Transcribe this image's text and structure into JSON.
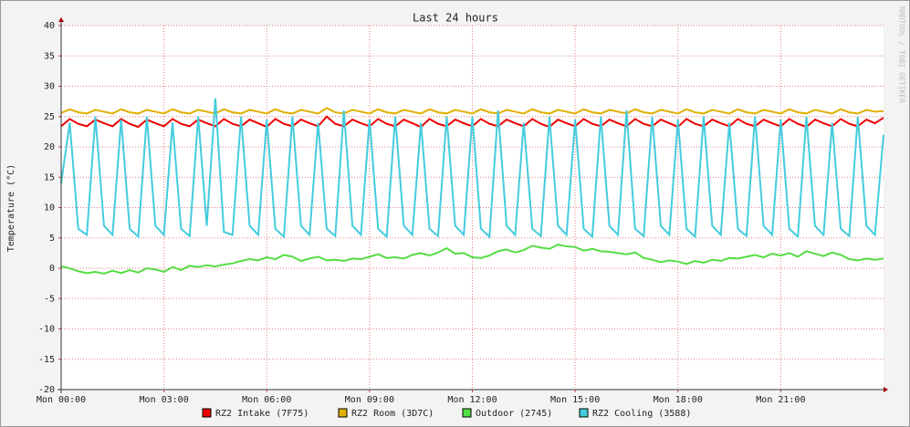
{
  "chart_data": {
    "type": "line",
    "title": "Last 24 hours",
    "ylabel": "Temperature (°C)",
    "watermark": "RRDTOOL / TOBI OETIKER",
    "grid": true,
    "legend": "bottom",
    "xlim": [
      0,
      24
    ],
    "xticks": [
      {
        "value": 0,
        "label": "Mon 00:00"
      },
      {
        "value": 3,
        "label": "Mon 03:00"
      },
      {
        "value": 6,
        "label": "Mon 06:00"
      },
      {
        "value": 9,
        "label": "Mon 09:00"
      },
      {
        "value": 12,
        "label": "Mon 12:00"
      },
      {
        "value": 15,
        "label": "Mon 15:00"
      },
      {
        "value": 18,
        "label": "Mon 18:00"
      },
      {
        "value": 21,
        "label": "Mon 21:00"
      }
    ],
    "ylim": [
      -20,
      40
    ],
    "yticks": [
      -20,
      -15,
      -10,
      -5,
      0,
      5,
      10,
      15,
      20,
      25,
      30,
      35,
      40
    ],
    "x": [
      0,
      0.25,
      0.5,
      0.75,
      1,
      1.25,
      1.5,
      1.75,
      2,
      2.25,
      2.5,
      2.75,
      3,
      3.25,
      3.5,
      3.75,
      4,
      4.25,
      4.5,
      4.75,
      5,
      5.25,
      5.5,
      5.75,
      6,
      6.25,
      6.5,
      6.75,
      7,
      7.25,
      7.5,
      7.75,
      8,
      8.25,
      8.5,
      8.75,
      9,
      9.25,
      9.5,
      9.75,
      10,
      10.25,
      10.5,
      10.75,
      11,
      11.25,
      11.5,
      11.75,
      12,
      12.25,
      12.5,
      12.75,
      13,
      13.25,
      13.5,
      13.75,
      14,
      14.25,
      14.5,
      14.75,
      15,
      15.25,
      15.5,
      15.75,
      16,
      16.25,
      16.5,
      16.75,
      17,
      17.25,
      17.5,
      17.75,
      18,
      18.25,
      18.5,
      18.75,
      19,
      19.25,
      19.5,
      19.75,
      20,
      20.25,
      20.5,
      20.75,
      21,
      21.25,
      21.5,
      21.75,
      22,
      22.25,
      22.5,
      22.75,
      23,
      23.25,
      23.5,
      23.75,
      24
    ],
    "series": [
      {
        "name": "RZ2 Intake (7F75)",
        "color": "#ee0000",
        "values": [
          23.4,
          24.6,
          23.8,
          23.4,
          24.5,
          23.9,
          23.4,
          24.6,
          23.8,
          23.3,
          24.5,
          23.9,
          23.4,
          24.6,
          23.8,
          23.4,
          24.5,
          23.9,
          23.4,
          24.6,
          23.8,
          23.4,
          24.5,
          23.9,
          23.3,
          24.6,
          23.8,
          23.4,
          24.5,
          23.9,
          23.4,
          25.0,
          23.8,
          23.4,
          24.5,
          23.9,
          23.4,
          24.6,
          23.8,
          23.4,
          24.5,
          23.9,
          23.3,
          24.6,
          23.8,
          23.4,
          24.5,
          23.9,
          23.4,
          24.6,
          23.8,
          23.4,
          24.5,
          23.9,
          23.4,
          24.6,
          23.8,
          23.3,
          24.5,
          23.9,
          23.4,
          24.6,
          23.8,
          23.4,
          24.5,
          23.9,
          23.4,
          24.6,
          23.8,
          23.4,
          24.5,
          23.9,
          23.3,
          24.6,
          23.8,
          23.4,
          24.5,
          23.9,
          23.4,
          24.6,
          23.8,
          23.4,
          24.5,
          23.9,
          23.4,
          24.6,
          23.8,
          23.3,
          24.5,
          23.9,
          23.4,
          24.6,
          23.8,
          23.4,
          24.5,
          23.9,
          24.8
        ]
      },
      {
        "name": "RZ2 Room (3D7C)",
        "color": "#e0b000",
        "values": [
          25.6,
          26.2,
          25.7,
          25.5,
          26.1,
          25.8,
          25.5,
          26.2,
          25.7,
          25.5,
          26.1,
          25.8,
          25.5,
          26.2,
          25.7,
          25.5,
          26.1,
          25.8,
          25.5,
          26.2,
          25.7,
          25.5,
          26.1,
          25.8,
          25.5,
          26.2,
          25.7,
          25.5,
          26.1,
          25.8,
          25.5,
          26.4,
          25.7,
          25.5,
          26.1,
          25.8,
          25.5,
          26.2,
          25.7,
          25.5,
          26.1,
          25.8,
          25.5,
          26.2,
          25.7,
          25.5,
          26.1,
          25.8,
          25.5,
          26.2,
          25.7,
          25.5,
          26.1,
          25.8,
          25.5,
          26.2,
          25.7,
          25.5,
          26.1,
          25.8,
          25.5,
          26.2,
          25.7,
          25.5,
          26.1,
          25.8,
          25.5,
          26.2,
          25.7,
          25.5,
          26.1,
          25.8,
          25.5,
          26.2,
          25.7,
          25.5,
          26.1,
          25.8,
          25.5,
          26.2,
          25.7,
          25.5,
          26.1,
          25.8,
          25.5,
          26.2,
          25.7,
          25.5,
          26.1,
          25.8,
          25.5,
          26.2,
          25.7,
          25.5,
          26.1,
          25.8,
          25.9
        ]
      },
      {
        "name": "Outdoor (2745)",
        "color": "#55dd44",
        "values": [
          0.3,
          0,
          -0.5,
          -0.8,
          -0.6,
          -0.9,
          -0.4,
          -0.8,
          -0.3,
          -0.7,
          0,
          -0.2,
          -0.6,
          0.2,
          -0.3,
          0.4,
          0.2,
          0.5,
          0.3,
          0.6,
          0.8,
          1.2,
          1.5,
          1.3,
          1.8,
          1.5,
          2.2,
          1.9,
          1.2,
          1.6,
          1.9,
          1.3,
          1.4,
          1.2,
          1.6,
          1.5,
          1.9,
          2.3,
          1.7,
          1.8,
          1.6,
          2.2,
          2.5,
          2.1,
          2.6,
          3.3,
          2.4,
          2.5,
          1.8,
          1.7,
          2.1,
          2.8,
          3.1,
          2.6,
          3.0,
          3.7,
          3.4,
          3.2,
          3.9,
          3.6,
          3.5,
          2.9,
          3.2,
          2.8,
          2.7,
          2.5,
          2.3,
          2.6,
          1.7,
          1.4,
          1.0,
          1.3,
          1.1,
          0.7,
          1.2,
          0.9,
          1.4,
          1.2,
          1.7,
          1.6,
          1.9,
          2.2,
          1.8,
          2.4,
          2.1,
          2.5,
          1.9,
          2.8,
          2.4,
          2.0,
          2.6,
          2.2,
          1.5,
          1.3,
          1.6,
          1.4,
          1.6
        ]
      },
      {
        "name": "RZ2 Cooling (3588)",
        "color": "#44ccdd",
        "values": [
          14,
          24,
          6.5,
          5.5,
          25,
          7,
          5.5,
          24.5,
          6.5,
          5.2,
          25,
          7,
          5.5,
          24,
          6.5,
          5.3,
          25,
          7,
          28,
          6,
          5.5,
          25,
          7,
          5.5,
          24.5,
          6.5,
          5.2,
          25,
          7,
          5.5,
          24,
          6.5,
          5.3,
          26,
          7,
          5.5,
          24.5,
          6.5,
          5.2,
          25,
          7,
          5.5,
          24,
          6.5,
          5.3,
          25,
          7,
          5.5,
          25,
          6.5,
          5.2,
          26,
          7,
          5.5,
          24,
          6.5,
          5.3,
          25,
          7,
          5.5,
          24.5,
          6.5,
          5.2,
          25,
          7,
          5.5,
          26,
          6.5,
          5.3,
          25,
          7,
          5.5,
          24.5,
          6.5,
          5.2,
          25,
          7,
          5.5,
          24,
          6.5,
          5.3,
          25,
          7,
          5.5,
          24.5,
          6.5,
          5.2,
          25,
          7,
          5.5,
          24,
          6.5,
          5.3,
          25,
          7,
          5.5,
          22
        ]
      }
    ]
  }
}
